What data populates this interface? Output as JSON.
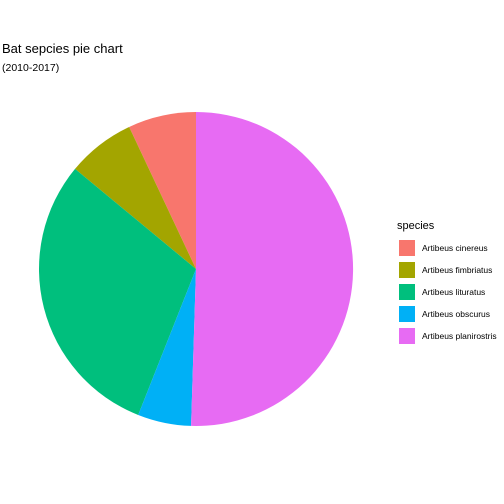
{
  "chart_data": {
    "type": "pie",
    "title": "Bat sepcies pie chart",
    "subtitle": "(2010-2017)",
    "legend_title": "species",
    "legend_position": "right",
    "slices": [
      {
        "label": "Artibeus cinereus",
        "value": 7,
        "color": "#F8766D"
      },
      {
        "label": "Artibeus fimbriatus",
        "value": 7,
        "color": "#A3A500"
      },
      {
        "label": "Artibeus lituratus",
        "value": 30,
        "color": "#00BF7D"
      },
      {
        "label": "Artibeus obscurus",
        "value": 5.5,
        "color": "#00B0F6"
      },
      {
        "label": "Artibeus planirostris",
        "value": 50.5,
        "color": "#E76BF3"
      }
    ]
  }
}
